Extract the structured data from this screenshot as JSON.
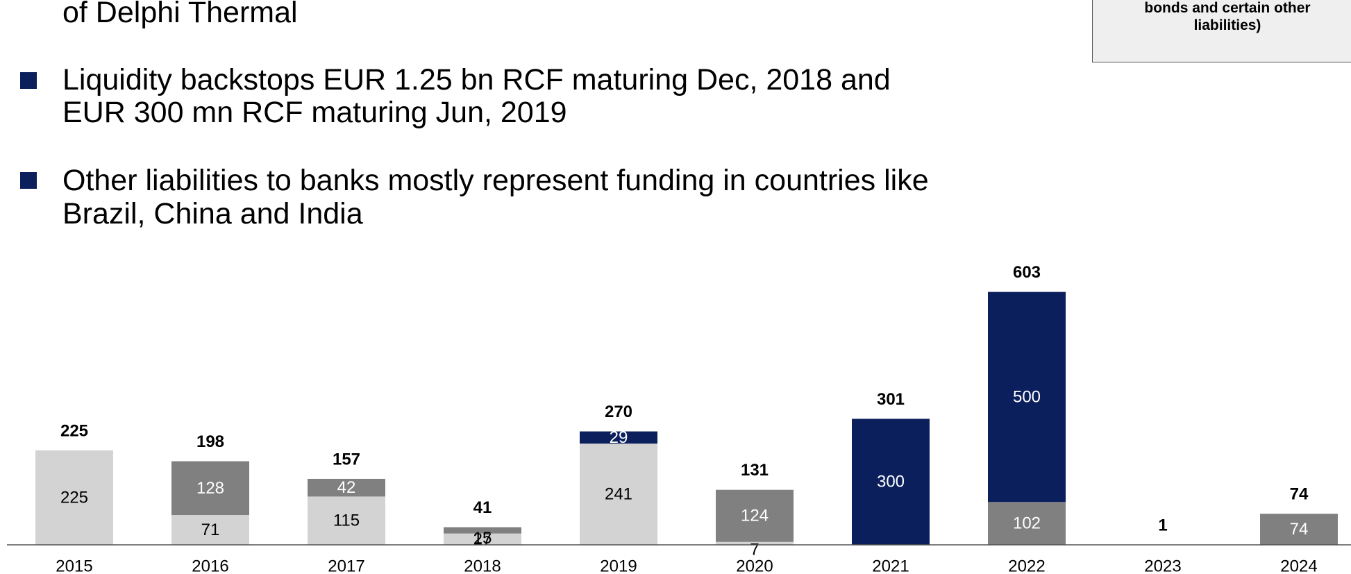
{
  "text": {
    "line_top": "of Delphi Thermal",
    "bullet1_line1": "Liquidity backstops EUR 1.25 bn RCF maturing Dec, 2018 and",
    "bullet1_line2": "EUR 300 mn RCF maturing Jun, 2019",
    "bullet2_line1": "Other liabilities to banks mostly represent funding in countries like",
    "bullet2_line2": "Brazil, China and India"
  },
  "legend": {
    "line1": "bonds and certain other",
    "line2": "liabilities)"
  },
  "colors": {
    "light_gray": "#d3d3d3",
    "mid_gray": "#808080",
    "navy": "#0b1f5c",
    "bullet": "#0b1f5c"
  },
  "chart_data": {
    "type": "bar",
    "stacked": true,
    "categories": [
      "2015",
      "2016",
      "2017",
      "2018",
      "2019",
      "2020",
      "2021",
      "2022",
      "2023",
      "2024"
    ],
    "series": [
      {
        "color": "#d3d3d3",
        "label_color": "#000000",
        "values": [
          225,
          71,
          115,
          27,
          241,
          7,
          0,
          0,
          0,
          0
        ]
      },
      {
        "color": "#808080",
        "label_color": "#ffffff",
        "values": [
          0,
          128,
          42,
          15,
          0,
          124,
          0,
          102,
          0,
          74
        ]
      },
      {
        "color": "#0b1f5c",
        "label_color": "#ffffff",
        "values": [
          0,
          0,
          0,
          0,
          29,
          0,
          300,
          500,
          0,
          0
        ]
      }
    ],
    "totals": [
      225,
      198,
      157,
      41,
      270,
      131,
      301,
      603,
      1,
      74
    ]
  }
}
